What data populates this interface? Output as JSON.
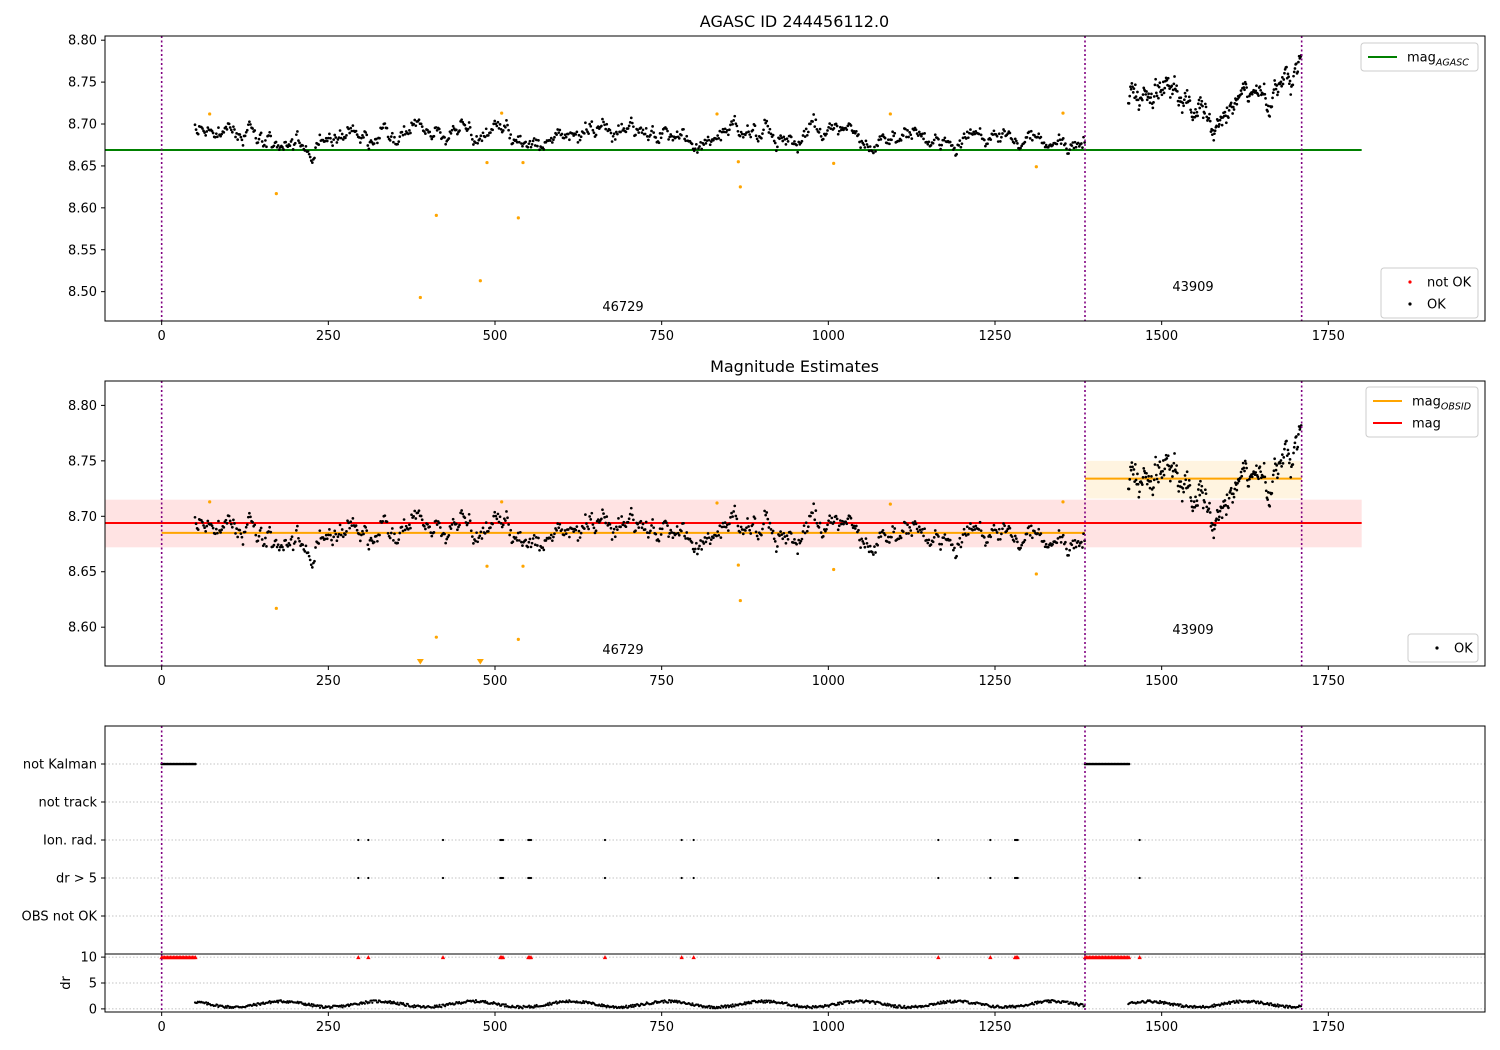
{
  "chart_data": [
    {
      "type": "scatter",
      "title": "AGASC ID 244456112.0",
      "xlim": [
        -85,
        1985
      ],
      "ylim": [
        8.465,
        8.805
      ],
      "xticks": [
        0,
        250,
        500,
        750,
        1000,
        1250,
        1500,
        1750
      ],
      "yticks": [
        8.5,
        8.55,
        8.6,
        8.65,
        8.7,
        8.75,
        8.8
      ],
      "grid": false,
      "legend_top": {
        "position": "upper right",
        "entries": [
          {
            "label": "mag",
            "sub": "AGASC",
            "color": "#008000",
            "kind": "line"
          }
        ]
      },
      "legend_bottom": {
        "position": "lower right",
        "entries": [
          {
            "label": "not OK",
            "color": "#ff0000",
            "kind": "point"
          },
          {
            "label": "OK",
            "color": "#000000",
            "kind": "point"
          }
        ]
      },
      "vlines": [
        0,
        1385,
        1710
      ],
      "hlines": [
        {
          "name": "mag AGASC",
          "y": 8.669,
          "x": [
            -85,
            1800
          ],
          "color": "#008000"
        }
      ],
      "obsid_labels": [
        {
          "text": "46729",
          "x": 692,
          "y": 8.477
        },
        {
          "text": "43909",
          "x": 1547,
          "y": 8.501
        }
      ],
      "outliers": [
        [
          72,
          8.712
        ],
        [
          172,
          8.617
        ],
        [
          388,
          8.493
        ],
        [
          412,
          8.591
        ],
        [
          478,
          8.513
        ],
        [
          488,
          8.654
        ],
        [
          510,
          8.713
        ],
        [
          535,
          8.588
        ],
        [
          542,
          8.654
        ],
        [
          833,
          8.712
        ],
        [
          865,
          8.655
        ],
        [
          868,
          8.625
        ],
        [
          1008,
          8.653
        ],
        [
          1093,
          8.712
        ],
        [
          1312,
          8.649
        ],
        [
          1352,
          8.713
        ]
      ],
      "segments": [
        {
          "x": [
            50,
            1385
          ],
          "base": 8.686
        },
        {
          "x": [
            1450,
            1710
          ],
          "base": 8.735
        }
      ]
    },
    {
      "type": "scatter",
      "title": "Magnitude Estimates",
      "xlim": [
        -85,
        1985
      ],
      "ylim": [
        8.565,
        8.822
      ],
      "xticks": [
        0,
        250,
        500,
        750,
        1000,
        1250,
        1500,
        1750
      ],
      "yticks": [
        8.6,
        8.65,
        8.7,
        8.75,
        8.8
      ],
      "grid": false,
      "legend_top": {
        "position": "upper right",
        "entries": [
          {
            "label": "mag",
            "sub": "OBSID",
            "color": "#ffa500",
            "kind": "line"
          },
          {
            "label": "mag",
            "sub": "",
            "color": "#ff0000",
            "kind": "line"
          }
        ]
      },
      "legend_bottom": {
        "position": "lower right",
        "entries": [
          {
            "label": "OK",
            "color": "#000000",
            "kind": "point"
          }
        ]
      },
      "vlines": [
        0,
        1385,
        1710
      ],
      "bands": [
        {
          "x": [
            -85,
            1800
          ],
          "y": [
            8.672,
            8.715
          ],
          "color": "#ff0000",
          "opacity": 0.11
        },
        {
          "x": [
            1385,
            1710
          ],
          "y": [
            8.716,
            8.75
          ],
          "color": "#ffa500",
          "opacity": 0.12
        }
      ],
      "hlines": [
        {
          "name": "mag",
          "y": 8.694,
          "x": [
            -85,
            1800
          ],
          "color": "#ff0000"
        },
        {
          "name": "mag OBSID 46729",
          "y": 8.685,
          "x": [
            0,
            1385
          ],
          "color": "#ffa500"
        },
        {
          "name": "mag OBSID 43909",
          "y": 8.734,
          "x": [
            1385,
            1710
          ],
          "color": "#ffa500"
        }
      ],
      "obsid_labels": [
        {
          "text": "46729",
          "x": 692,
          "y": 8.576
        },
        {
          "text": "43909",
          "x": 1547,
          "y": 8.594
        }
      ],
      "outliers": [
        [
          72,
          8.713
        ],
        [
          172,
          8.617
        ],
        [
          412,
          8.591
        ],
        [
          488,
          8.655
        ],
        [
          510,
          8.713
        ],
        [
          535,
          8.589
        ],
        [
          542,
          8.655
        ],
        [
          833,
          8.712
        ],
        [
          865,
          8.656
        ],
        [
          868,
          8.624
        ],
        [
          1008,
          8.652
        ],
        [
          1093,
          8.711
        ],
        [
          1312,
          8.648
        ],
        [
          1352,
          8.713
        ]
      ],
      "below_range_markers": [
        388,
        478
      ],
      "segments": [
        {
          "x": [
            50,
            1385
          ],
          "base": 8.686
        },
        {
          "x": [
            1450,
            1710
          ],
          "base": 8.735
        }
      ]
    },
    {
      "type": "scatter",
      "xlim": [
        -85,
        1985
      ],
      "xticks": [
        0,
        250,
        500,
        750,
        1000,
        1250,
        1500,
        1750
      ],
      "flag_rows": [
        "not Kalman",
        "not track",
        "Ion. rad.",
        "dr > 5",
        "OBS not OK"
      ],
      "vlines": [
        0,
        1385,
        1710
      ],
      "flags": {
        "not Kalman": [
          [
            0,
            52
          ],
          [
            1385,
            1452
          ]
        ],
        "Ion. rad.": [
          295,
          310,
          422,
          508,
          510,
          512,
          550,
          552,
          554,
          665,
          780,
          798,
          1165,
          1243,
          1280,
          1282,
          1284,
          1467
        ],
        "dr > 5": [
          295,
          310,
          422,
          508,
          510,
          512,
          550,
          552,
          554,
          665,
          780,
          798,
          1165,
          1243,
          1280,
          1282,
          1284,
          1467
        ]
      },
      "dr_panel": {
        "ylabel": "dr",
        "yticks": [
          0,
          5,
          10
        ],
        "ylim": [
          -0.6,
          10.6
        ],
        "clip_value": 10,
        "segments": [
          {
            "x": [
              50,
              1385
            ]
          },
          {
            "x": [
              1450,
              1710
            ]
          }
        ]
      }
    }
  ]
}
